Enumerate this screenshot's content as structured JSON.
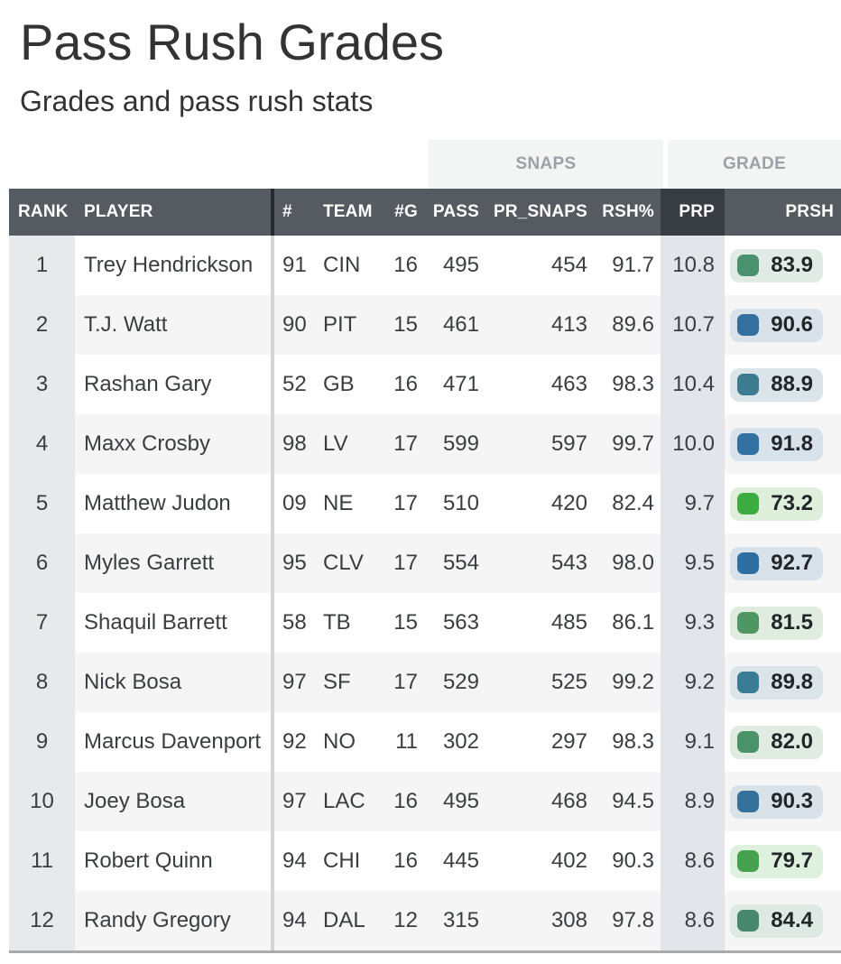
{
  "page": {
    "title": "Pass Rush Grades",
    "subtitle": "Grades and pass rush stats"
  },
  "theme": {
    "header_bg": "#565b62",
    "header_sorted_bg": "#383c43",
    "header_text": "#ffffff",
    "group_bg": "#f3f4f4",
    "group_text": "#9aa1a8",
    "row_bg": "#ffffff",
    "row_alt_bg": "#f5f5f6",
    "rank_col_bg": "#e8e9eb",
    "prp_col_bg": "#e3e5ea",
    "divider_header": "#26292d",
    "divider_body": "#d4d5d7",
    "bottom_border": "#a9aaac",
    "text": "#3a3d41",
    "title_text": "#333333",
    "badge_text": "#232629"
  },
  "table": {
    "group_headers": [
      {
        "label": "SNAPS"
      },
      {
        "label": "GRADE"
      }
    ],
    "columns": [
      "RANK",
      "PLAYER",
      "#",
      "TEAM",
      "#G",
      "PASS",
      "PR_SNAPS",
      "RSH%",
      "PRP",
      "PRSH"
    ],
    "sorted_column": "PRP",
    "rows": [
      {
        "rank": "1",
        "player": "Trey Hendrickson",
        "jersey": "91",
        "team": "CIN",
        "games": "16",
        "pass": "495",
        "pr_snaps": "454",
        "rsh_pct": "91.7",
        "prp": "10.8",
        "prsh": {
          "value": "83.9",
          "color": "#4a9170",
          "bg": "#e1ebe5"
        }
      },
      {
        "rank": "2",
        "player": "T.J. Watt",
        "jersey": "90",
        "team": "PIT",
        "games": "15",
        "pass": "461",
        "pr_snaps": "413",
        "rsh_pct": "89.6",
        "prp": "10.7",
        "prsh": {
          "value": "90.6",
          "color": "#33709d",
          "bg": "#d9e2ea"
        }
      },
      {
        "rank": "3",
        "player": "Rashan Gary",
        "jersey": "52",
        "team": "GB",
        "games": "16",
        "pass": "471",
        "pr_snaps": "463",
        "rsh_pct": "98.3",
        "prp": "10.4",
        "prsh": {
          "value": "88.9",
          "color": "#3d7b91",
          "bg": "#dbe5e9"
        }
      },
      {
        "rank": "4",
        "player": "Maxx Crosby",
        "jersey": "98",
        "team": "LV",
        "games": "17",
        "pass": "599",
        "pr_snaps": "597",
        "rsh_pct": "99.7",
        "prp": "10.0",
        "prsh": {
          "value": "91.8",
          "color": "#31709f",
          "bg": "#d8e2ea"
        }
      },
      {
        "rank": "5",
        "player": "Matthew Judon",
        "jersey": "09",
        "team": "NE",
        "games": "17",
        "pass": "510",
        "pr_snaps": "420",
        "rsh_pct": "82.4",
        "prp": "9.7",
        "prsh": {
          "value": "73.2",
          "color": "#3dac40",
          "bg": "#def0dc"
        }
      },
      {
        "rank": "6",
        "player": "Myles Garrett",
        "jersey": "95",
        "team": "CLV",
        "games": "17",
        "pass": "554",
        "pr_snaps": "543",
        "rsh_pct": "98.0",
        "prp": "9.5",
        "prsh": {
          "value": "92.7",
          "color": "#2d6fa3",
          "bg": "#d8e2eb"
        }
      },
      {
        "rank": "7",
        "player": "Shaquil Barrett",
        "jersey": "58",
        "team": "TB",
        "games": "15",
        "pass": "563",
        "pr_snaps": "485",
        "rsh_pct": "86.1",
        "prp": "9.3",
        "prsh": {
          "value": "81.5",
          "color": "#4e9763",
          "bg": "#e0ecdf"
        }
      },
      {
        "rank": "8",
        "player": "Nick Bosa",
        "jersey": "97",
        "team": "SF",
        "games": "17",
        "pass": "529",
        "pr_snaps": "525",
        "rsh_pct": "99.2",
        "prp": "9.2",
        "prsh": {
          "value": "89.8",
          "color": "#3a7b95",
          "bg": "#dae4e9"
        }
      },
      {
        "rank": "9",
        "player": "Marcus Davenport",
        "jersey": "92",
        "team": "NO",
        "games": "11",
        "pass": "302",
        "pr_snaps": "297",
        "rsh_pct": "98.3",
        "prp": "9.1",
        "prsh": {
          "value": "82.0",
          "color": "#4a9267",
          "bg": "#e0ebe2"
        }
      },
      {
        "rank": "10",
        "player": "Joey Bosa",
        "jersey": "97",
        "team": "LAC",
        "games": "16",
        "pass": "495",
        "pr_snaps": "468",
        "rsh_pct": "94.5",
        "prp": "8.9",
        "prsh": {
          "value": "90.3",
          "color": "#34719b",
          "bg": "#d9e2e9"
        }
      },
      {
        "rank": "11",
        "player": "Robert Quinn",
        "jersey": "94",
        "team": "CHI",
        "games": "16",
        "pass": "445",
        "pr_snaps": "402",
        "rsh_pct": "90.3",
        "prp": "8.6",
        "prsh": {
          "value": "79.7",
          "color": "#46a14e",
          "bg": "#def0de"
        }
      },
      {
        "rank": "12",
        "player": "Randy Gregory",
        "jersey": "94",
        "team": "DAL",
        "games": "12",
        "pass": "315",
        "pr_snaps": "308",
        "rsh_pct": "97.8",
        "prp": "8.6",
        "prsh": {
          "value": "84.4",
          "color": "#47876f",
          "bg": "#dee9e4"
        }
      }
    ]
  }
}
